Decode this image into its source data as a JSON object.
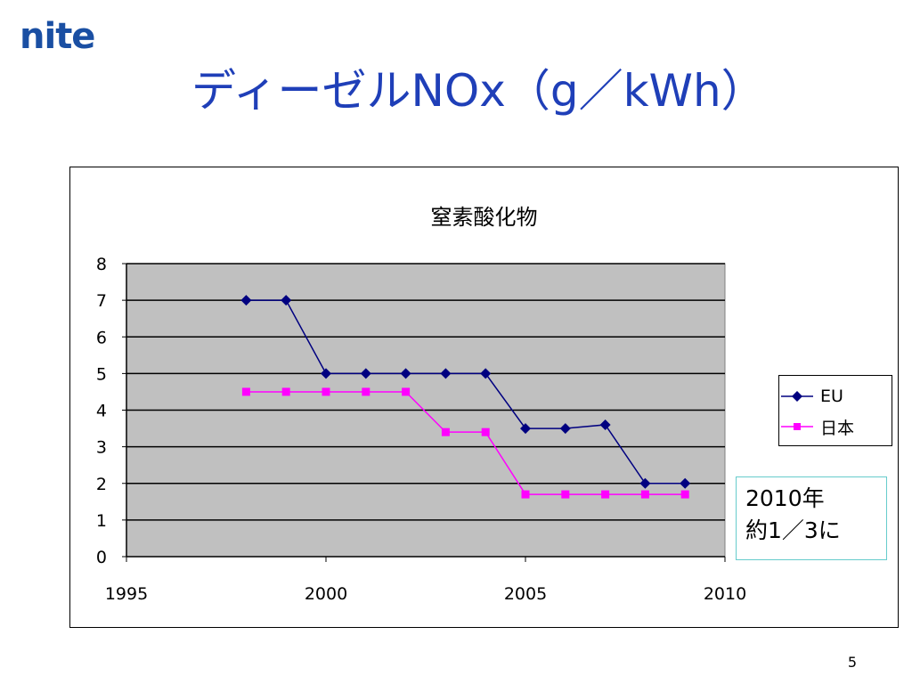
{
  "slide": {
    "logo": "nite",
    "title": "ディーゼルNOx（g／kWh）",
    "page_number": "5"
  },
  "note": {
    "line1": "2010年",
    "line2": "約1／3に"
  },
  "colors": {
    "title": "#1f3fb8",
    "logo": "#1a4fa3",
    "plot_background": "#c0c0c0",
    "eu": "#000080",
    "japan": "#ff00ff",
    "note_border": "#66cccc"
  },
  "chart_data": {
    "type": "line",
    "title": "窒素酸化物",
    "xlabel": "",
    "ylabel": "",
    "xlim": [
      1995,
      2010
    ],
    "ylim": [
      0,
      8
    ],
    "x_ticks": [
      "1995",
      "2000",
      "2005",
      "2010"
    ],
    "y_ticks": [
      "0",
      "1",
      "2",
      "3",
      "4",
      "5",
      "6",
      "7",
      "8"
    ],
    "grid": true,
    "legend_position": "right",
    "series": [
      {
        "name": "EU",
        "marker": "diamond",
        "color": "#000080",
        "x": [
          1998,
          1999,
          2000,
          2001,
          2002,
          2003,
          2004,
          2005,
          2006,
          2007,
          2008,
          2009
        ],
        "values": [
          7,
          7,
          5,
          5,
          5,
          5,
          5,
          3.5,
          3.5,
          3.6,
          2,
          2
        ]
      },
      {
        "name": "日本",
        "marker": "square",
        "color": "#ff00ff",
        "x": [
          1998,
          1999,
          2000,
          2001,
          2002,
          2003,
          2004,
          2005,
          2006,
          2007,
          2008,
          2009
        ],
        "values": [
          4.5,
          4.5,
          4.5,
          4.5,
          4.5,
          3.4,
          3.4,
          1.7,
          1.7,
          1.7,
          1.7,
          1.7
        ]
      }
    ]
  }
}
